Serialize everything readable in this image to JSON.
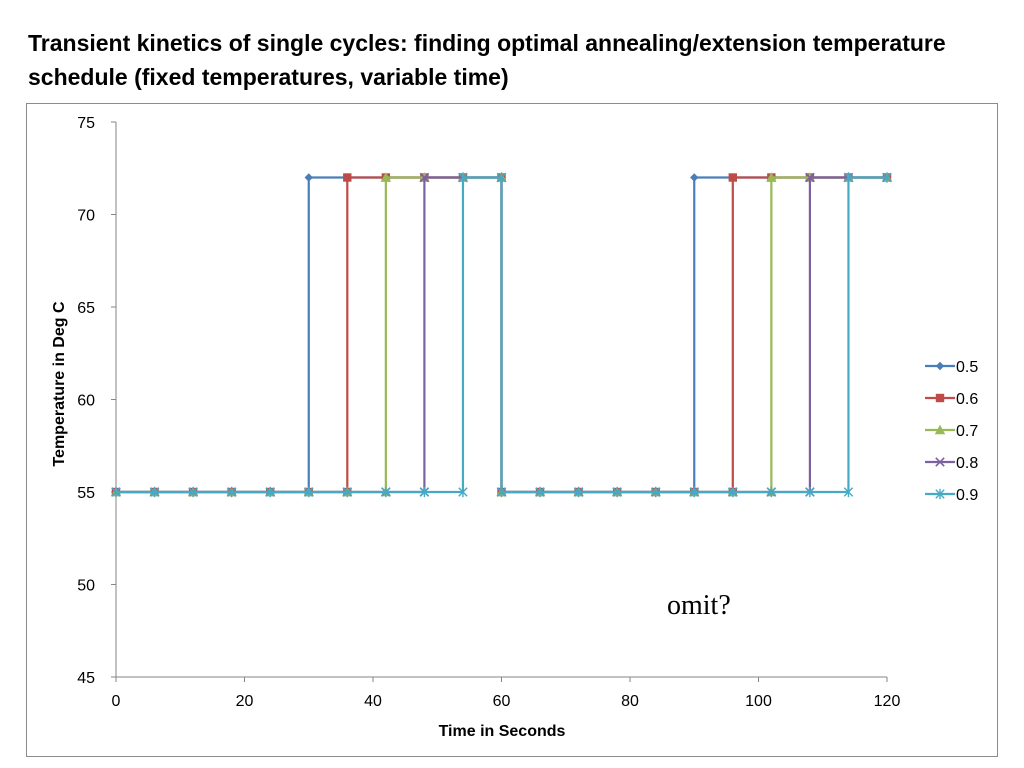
{
  "slide": {
    "title": "Transient kinetics of single cycles: finding optimal annealing/extension temperature schedule (fixed temperatures, variable time)"
  },
  "chart_data": {
    "type": "line",
    "xlabel": "Time in Seconds",
    "ylabel": "Temperature in Deg C",
    "xlim": [
      0,
      120
    ],
    "ylim": [
      45,
      75
    ],
    "xticks": [
      0,
      20,
      40,
      60,
      80,
      100,
      120
    ],
    "yticks": [
      45,
      50,
      55,
      60,
      65,
      70,
      75
    ],
    "grid": false,
    "legend_position": "right",
    "annotation": "omit?",
    "series": [
      {
        "name": "0.5",
        "color": "#4a7ebb",
        "marker": "diamond",
        "x": [
          0,
          6,
          12,
          18,
          24,
          30,
          30,
          36,
          42,
          48,
          54,
          60,
          60,
          66,
          72,
          78,
          84,
          90,
          90,
          96,
          102,
          108,
          114,
          120
        ],
        "y": [
          55,
          55,
          55,
          55,
          55,
          55,
          72,
          72,
          72,
          72,
          72,
          72,
          55,
          55,
          55,
          55,
          55,
          55,
          72,
          72,
          72,
          72,
          72,
          72
        ]
      },
      {
        "name": "0.6",
        "color": "#be4b48",
        "marker": "square",
        "x": [
          0,
          6,
          12,
          18,
          24,
          30,
          36,
          36,
          42,
          48,
          54,
          60,
          60,
          66,
          72,
          78,
          84,
          90,
          96,
          96,
          102,
          108,
          114,
          120
        ],
        "y": [
          55,
          55,
          55,
          55,
          55,
          55,
          55,
          72,
          72,
          72,
          72,
          72,
          55,
          55,
          55,
          55,
          55,
          55,
          55,
          72,
          72,
          72,
          72,
          72
        ]
      },
      {
        "name": "0.7",
        "color": "#98b954",
        "marker": "triangle",
        "x": [
          0,
          6,
          12,
          18,
          24,
          30,
          36,
          42,
          42,
          48,
          54,
          60,
          60,
          66,
          72,
          78,
          84,
          90,
          96,
          102,
          102,
          108,
          114,
          120
        ],
        "y": [
          55,
          55,
          55,
          55,
          55,
          55,
          55,
          55,
          72,
          72,
          72,
          72,
          55,
          55,
          55,
          55,
          55,
          55,
          55,
          55,
          72,
          72,
          72,
          72
        ]
      },
      {
        "name": "0.8",
        "color": "#7d60a0",
        "marker": "x",
        "x": [
          0,
          6,
          12,
          18,
          24,
          30,
          36,
          42,
          48,
          48,
          54,
          60,
          60,
          66,
          72,
          78,
          84,
          90,
          96,
          102,
          108,
          108,
          114,
          120
        ],
        "y": [
          55,
          55,
          55,
          55,
          55,
          55,
          55,
          55,
          55,
          72,
          72,
          72,
          55,
          55,
          55,
          55,
          55,
          55,
          55,
          55,
          55,
          72,
          72,
          72
        ]
      },
      {
        "name": "0.9",
        "color": "#46aac5",
        "marker": "star",
        "x": [
          0,
          6,
          12,
          18,
          24,
          30,
          36,
          42,
          48,
          54,
          54,
          60,
          60,
          66,
          72,
          78,
          84,
          90,
          96,
          102,
          108,
          114,
          114,
          120
        ],
        "y": [
          55,
          55,
          55,
          55,
          55,
          55,
          55,
          55,
          55,
          55,
          72,
          72,
          55,
          55,
          55,
          55,
          55,
          55,
          55,
          55,
          55,
          55,
          72,
          72
        ]
      }
    ]
  }
}
